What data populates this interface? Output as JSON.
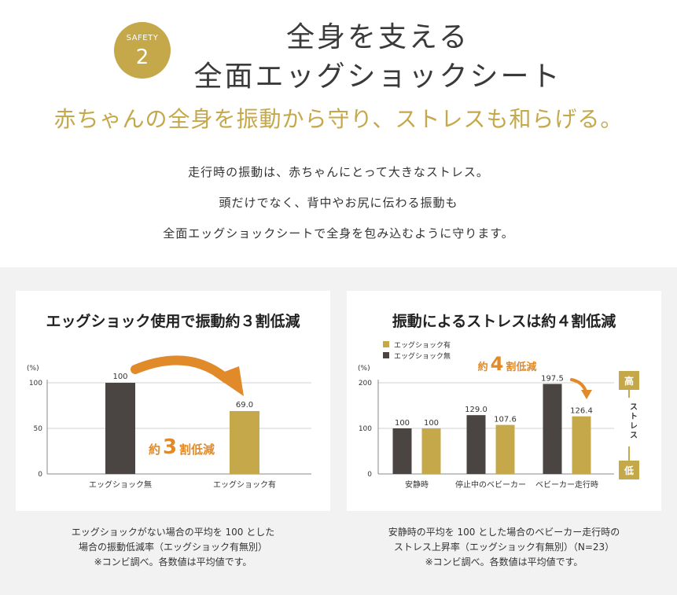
{
  "header": {
    "badge_label": "SAFETY",
    "badge_number": "2",
    "title_line1": "全身を支える",
    "title_line2": "全面エッグショックシート",
    "subtitle": "赤ちゃんの全身を振動から守り、ストレスも和らげる。",
    "lead": [
      "走行時の振動は、赤ちゃんにとって大きなストレス。",
      "頭だけでなく、背中やお尻に伝わる振動も",
      "全面エッグショックシートで全身を包み込むように守ります。"
    ]
  },
  "colors": {
    "gold": "#c4a84a",
    "dark": "#4a4443",
    "arrow": "#e08a2a"
  },
  "chart_data": [
    {
      "type": "bar",
      "title": "エッグショック使用で振動約３割低減",
      "ylabel": "(%)",
      "ylim": [
        0,
        100
      ],
      "yticks": [
        0,
        50,
        100
      ],
      "categories": [
        "エッグショック無",
        "エッグショック有"
      ],
      "values": [
        100,
        69.0
      ],
      "value_labels": [
        "100",
        "69.0"
      ],
      "bar_colors": [
        "dark",
        "gold"
      ],
      "annotation": {
        "pre": "約",
        "num": "3",
        "post": "割低減"
      },
      "note": [
        "エッグショックがない場合の平均を 100 とした",
        "場合の振動低減率（エッグショック有無別）",
        "※コンビ調べ。各数値は平均値です。"
      ]
    },
    {
      "type": "bar",
      "title": "振動によるストレスは約４割低減",
      "ylabel": "(%)",
      "ylim": [
        0,
        200
      ],
      "yticks": [
        0,
        100,
        200
      ],
      "categories": [
        "安静時",
        "停止中のベビーカー",
        "ベビーカー走行時"
      ],
      "series": [
        {
          "name": "エッグショック無",
          "values": [
            100,
            129.0,
            197.5
          ],
          "labels": [
            "100",
            "129.0",
            "197.5"
          ],
          "color": "dark"
        },
        {
          "name": "エッグショック有",
          "values": [
            100,
            107.6,
            126.4
          ],
          "labels": [
            "100",
            "107.6",
            "126.4"
          ],
          "color": "gold"
        }
      ],
      "legend": [
        "エッグショック有",
        "エッグショック無"
      ],
      "legend_position": "top-left",
      "annotation": {
        "pre": "約",
        "num": "4",
        "post": "割低減"
      },
      "stress_scale": {
        "high": "高",
        "label": "ストレス",
        "low": "低"
      },
      "note": [
        "安静時の平均を 100 とした場合のベビーカー走行時の",
        "ストレス上昇率（エッグショック有無別）（N=23）",
        "※コンビ調べ。各数値は平均値です。"
      ]
    }
  ]
}
